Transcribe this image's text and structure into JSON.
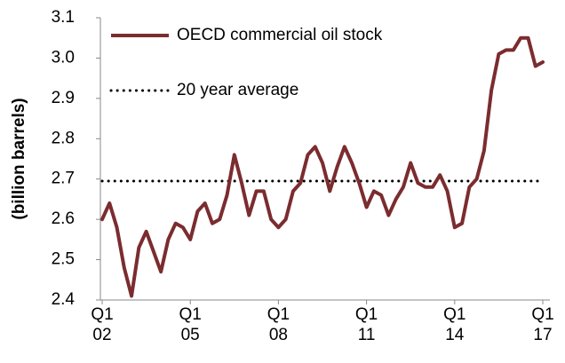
{
  "chart_data": {
    "type": "line",
    "y_axis_label": "(billion barrels)",
    "categories": [
      "Q1\n02",
      null,
      null,
      null,
      null,
      null,
      null,
      null,
      null,
      null,
      null,
      null,
      "Q1\n05",
      null,
      null,
      null,
      null,
      null,
      null,
      null,
      null,
      null,
      null,
      null,
      "Q1\n08",
      null,
      null,
      null,
      null,
      null,
      null,
      null,
      null,
      null,
      null,
      null,
      "Q1\n11",
      null,
      null,
      null,
      null,
      null,
      null,
      null,
      null,
      null,
      null,
      null,
      "Q1\n14",
      null,
      null,
      null,
      null,
      null,
      null,
      null,
      null,
      null,
      null,
      null,
      "Q1\n17"
    ],
    "series": [
      {
        "name": "OECD commercial oil stock",
        "color": "#7b2c2f",
        "values": [
          2.6,
          2.64,
          2.58,
          2.48,
          2.41,
          2.53,
          2.57,
          2.52,
          2.47,
          2.55,
          2.59,
          2.58,
          2.55,
          2.62,
          2.64,
          2.59,
          2.6,
          2.66,
          2.76,
          2.69,
          2.61,
          2.67,
          2.67,
          2.6,
          2.58,
          2.6,
          2.67,
          2.69,
          2.76,
          2.78,
          2.74,
          2.67,
          2.73,
          2.78,
          2.74,
          2.69,
          2.63,
          2.67,
          2.66,
          2.61,
          2.65,
          2.68,
          2.74,
          2.69,
          2.68,
          2.68,
          2.71,
          2.67,
          2.58,
          2.59,
          2.68,
          2.7,
          2.77,
          2.92,
          3.01,
          3.02,
          3.02,
          3.05,
          3.05,
          2.98,
          2.99
        ]
      }
    ],
    "reference_line": {
      "name": "20 year average",
      "value": 2.695,
      "color": "#000000"
    },
    "ylim": [
      2.4,
      3.1
    ],
    "yticks": [
      {
        "value": 2.4,
        "label": "2.4"
      },
      {
        "value": 2.5,
        "label": "2.5"
      },
      {
        "value": 2.6,
        "label": "2.6"
      },
      {
        "value": 2.7,
        "label": "2.7"
      },
      {
        "value": 2.8,
        "label": "2.8"
      },
      {
        "value": 2.9,
        "label": "2.9"
      },
      {
        "value": 3.0,
        "label": "3.0"
      },
      {
        "value": 3.1,
        "label": "3.1"
      }
    ],
    "grid": false
  }
}
